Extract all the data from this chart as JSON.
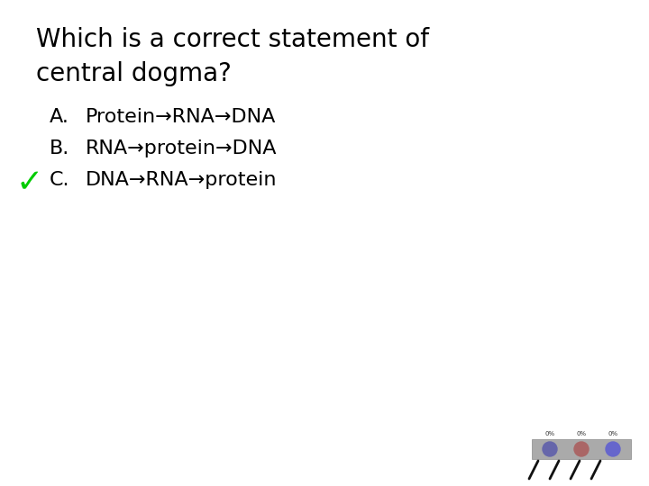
{
  "title_line1": "Which is a correct statement of",
  "title_line2": "central dogma?",
  "options": [
    {
      "label": "A.",
      "text": "Protein→RNA→DNA"
    },
    {
      "label": "B.",
      "text": "RNA→protein→DNA"
    },
    {
      "label": "C.",
      "text": "DNA→RNA→protein",
      "correct": true
    }
  ],
  "background_color": "#ffffff",
  "text_color": "#000000",
  "checkmark_color": "#00cc00",
  "title_fontsize": 20,
  "option_fontsize": 16,
  "checkmark_fontsize": 26,
  "voting_bar_colors": [
    "#6666aa",
    "#aa6666",
    "#6666cc"
  ],
  "voting_bar_labels": [
    "0%",
    "0%",
    "0%"
  ]
}
